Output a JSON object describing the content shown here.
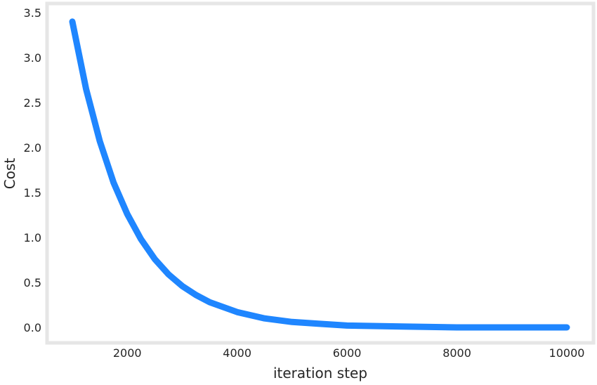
{
  "chart_data": {
    "type": "line",
    "title": "",
    "xlabel": "iteration step",
    "ylabel": "Cost",
    "xlim": [
      1000,
      10000
    ],
    "ylim": [
      -0.1,
      3.5
    ],
    "x_ticks": [
      "2000",
      "4000",
      "6000",
      "8000",
      "10000"
    ],
    "y_ticks": [
      "0.0",
      "0.5",
      "1.0",
      "1.5",
      "2.0",
      "2.5",
      "3.0",
      "3.5"
    ],
    "grid": false,
    "legend": "none",
    "line_color": "#1f86ff",
    "frame_color": "#e6e6e6",
    "series": [
      {
        "x": [
          1000,
          1250,
          1500,
          1750,
          2000,
          2250,
          2500,
          2750,
          3000,
          3250,
          3500,
          4000,
          4500,
          5000,
          5500,
          6000,
          7000,
          8000,
          9000,
          10000
        ],
        "values": [
          3.4,
          2.65,
          2.07,
          1.61,
          1.26,
          0.98,
          0.76,
          0.59,
          0.46,
          0.36,
          0.28,
          0.17,
          0.1,
          0.06,
          0.04,
          0.02,
          0.01,
          0.0,
          0.0,
          0.0
        ]
      }
    ]
  }
}
